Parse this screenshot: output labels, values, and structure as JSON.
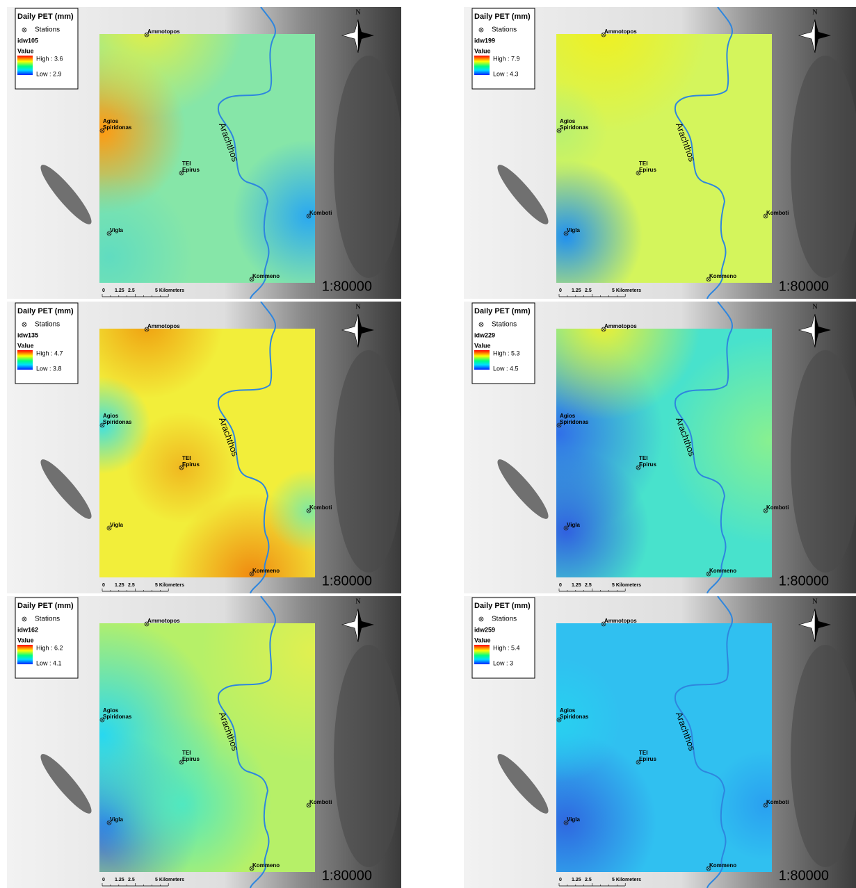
{
  "legend_title": "Daily PET (mm)",
  "stations_label": "Stations",
  "value_label": "Value",
  "stations": [
    [
      "Ammotopos"
    ],
    [
      "Agios",
      "Spiridonas"
    ],
    [
      "TEI",
      "Epirus"
    ],
    [
      "Vigla"
    ],
    [
      "Komboti"
    ],
    [
      "Kommeno"
    ]
  ],
  "river": "Arachthos",
  "north": "N",
  "scale_bar": [
    "0",
    "1.25",
    "2.5",
    "5 Kilometers"
  ],
  "scale": "1:80000",
  "panels": [
    {
      "layer": "idw105",
      "high": "High : 3.6",
      "low": "Low : 2.9"
    },
    {
      "layer": "idw199",
      "high": "High : 7.9",
      "low": "Low : 4.3"
    },
    {
      "layer": "idw135",
      "high": "High : 4.7",
      "low": "Low : 3.8"
    },
    {
      "layer": "idw229",
      "high": "High : 5.3",
      "low": "Low : 4.5"
    },
    {
      "layer": "idw162",
      "high": "High : 6.2",
      "low": "Low : 4.1"
    },
    {
      "layer": "idw259",
      "high": "High : 5.4",
      "low": "Low : 3"
    }
  ]
}
